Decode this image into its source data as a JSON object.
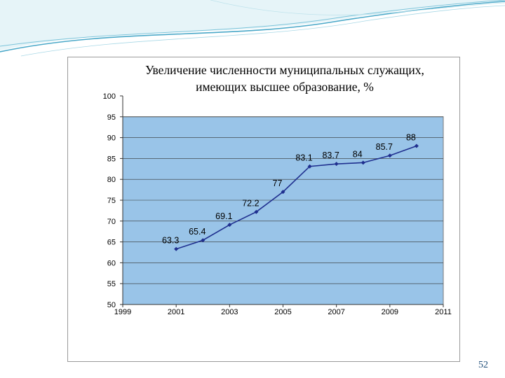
{
  "slide": {
    "page_number": "52",
    "accent_color": "#4aa8c8"
  },
  "chart_data": {
    "type": "line",
    "title": "Увеличение численности муниципальных служащих, имеющих высшее образование, %",
    "xlabel": "",
    "ylabel": "",
    "x": [
      2001,
      2002,
      2003,
      2004,
      2005,
      2006,
      2007,
      2008,
      2009,
      2010
    ],
    "series": [
      {
        "values": [
          63.3,
          65.4,
          69.1,
          72.2,
          77,
          83.1,
          83.7,
          84,
          85.7,
          88
        ],
        "labels": [
          "63.3",
          "65.4",
          "69.1",
          "72.2",
          "77",
          "83.1",
          "83.7",
          "84",
          "85.7",
          "88"
        ],
        "color": "#1f2f8f"
      }
    ],
    "xlim": [
      1999,
      2011
    ],
    "ylim": [
      50,
      100
    ],
    "x_ticks": [
      1999,
      2001,
      2003,
      2005,
      2007,
      2009,
      2011
    ],
    "x_tick_labels": [
      "1999",
      "2001",
      "2003",
      "2005",
      "2007",
      "2009",
      "2011"
    ],
    "y_ticks": [
      50,
      55,
      60,
      65,
      70,
      75,
      80,
      85,
      90,
      95,
      100
    ],
    "y_tick_labels": [
      "50",
      "55",
      "60",
      "65",
      "70",
      "75",
      "80",
      "85",
      "90",
      "95",
      "100"
    ],
    "plot_background": "#99c4e8",
    "grid": true,
    "legend": "none"
  }
}
